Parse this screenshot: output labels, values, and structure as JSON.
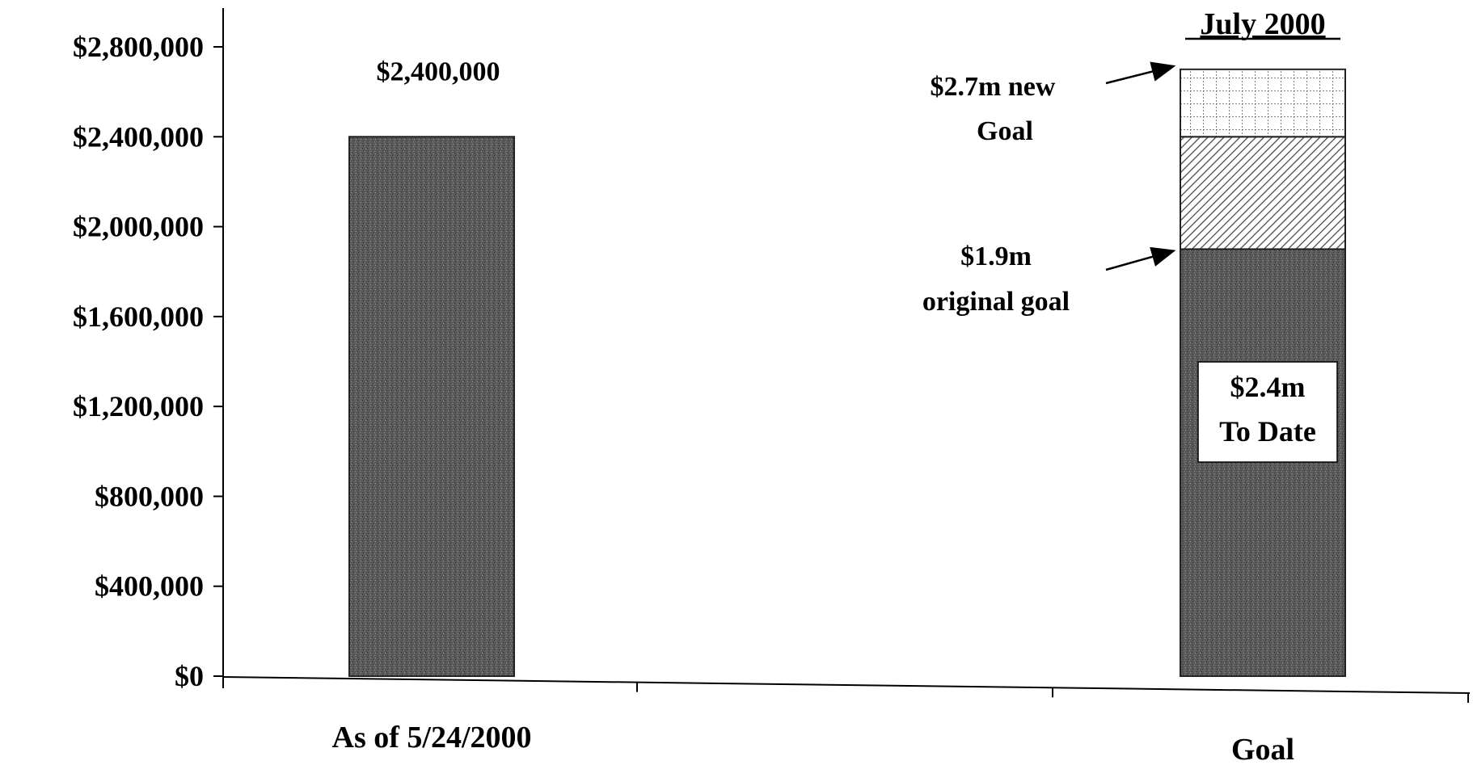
{
  "chart_data": {
    "type": "bar",
    "title": "",
    "xlabel": "",
    "ylabel": "",
    "ylim": [
      0,
      2800000
    ],
    "yticks": [
      0,
      400000,
      800000,
      1200000,
      1600000,
      2000000,
      2400000,
      2800000
    ],
    "ytick_labels": [
      "$0",
      "$400,000",
      "$800,000",
      "$1,200,000",
      "$1,600,000",
      "$2,000,000",
      "$2,400,000",
      "$2,800,000"
    ],
    "categories": [
      "As of 5/24/2000",
      "Goal"
    ],
    "stacked": true,
    "series": [
      {
        "name": "",
        "values": [
          2400000,
          1900000
        ]
      },
      {
        "name": "",
        "values": [
          0,
          500000
        ]
      },
      {
        "name": "",
        "values": [
          0,
          300000
        ]
      }
    ],
    "grid": false,
    "colors": {
      "bar_fill": "#555555",
      "hatch": "#444444",
      "grid_fill": "#ffffff"
    },
    "bar_value_label": "$2,400,000",
    "goal_title": "July 2000",
    "annotations": {
      "new_goal_line1": "$2.7m new",
      "new_goal_line2": "Goal",
      "original_goal_line1": "$1.9m",
      "original_goal_line2": "original goal",
      "to_date_line1": "$2.4m",
      "to_date_line2": "To Date"
    }
  }
}
